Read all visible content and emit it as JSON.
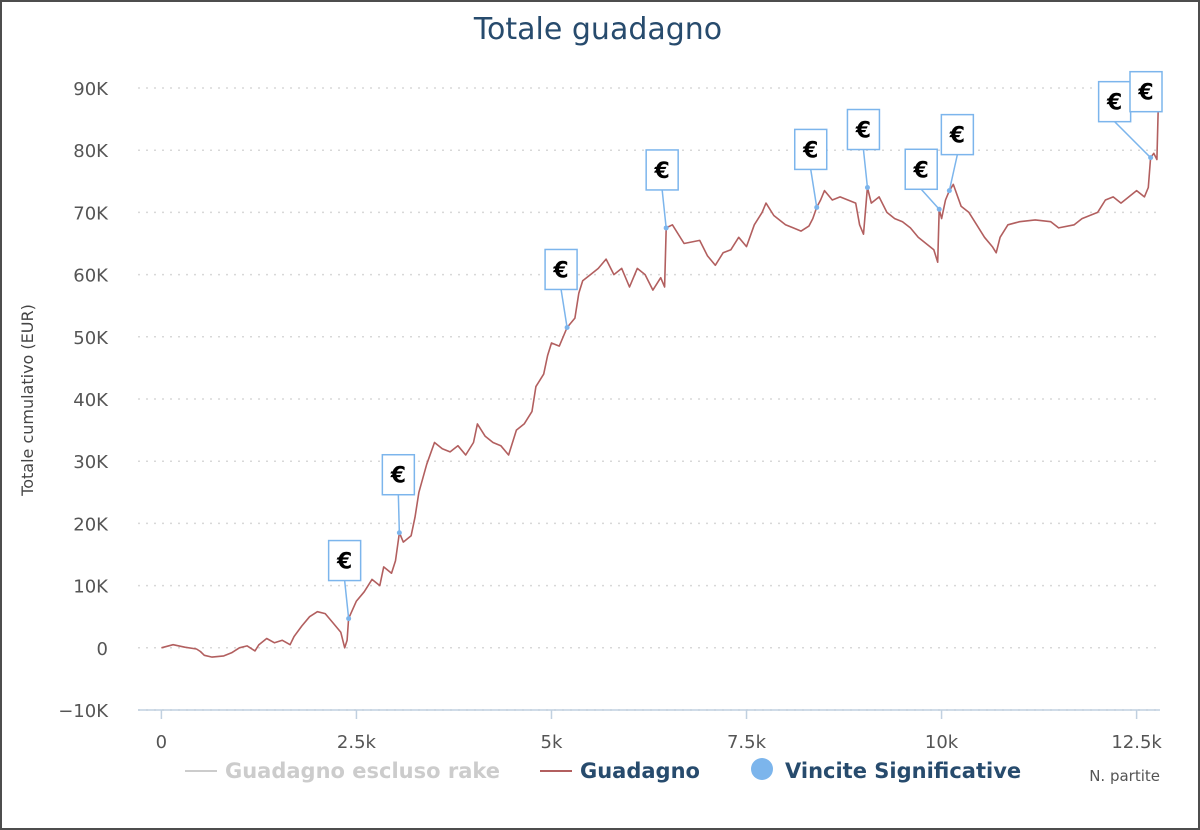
{
  "chart_data": {
    "type": "line",
    "title": "Totale guadagno",
    "xlabel": "N. partite",
    "ylabel": "Totale cumulativo (EUR)",
    "xlim": [
      -300,
      12800
    ],
    "ylim": [
      -10000,
      90000
    ],
    "x_ticks": [
      0,
      2500,
      5000,
      7500,
      10000,
      12500
    ],
    "x_tick_labels": [
      "0",
      "2.5k",
      "5k",
      "7.5k",
      "10k",
      "12.5k"
    ],
    "y_ticks": [
      -10000,
      0,
      10000,
      20000,
      30000,
      40000,
      50000,
      60000,
      70000,
      80000,
      90000
    ],
    "y_tick_labels": [
      "−10K",
      "0",
      "10K",
      "20K",
      "30K",
      "40K",
      "50K",
      "60K",
      "70K",
      "80K",
      "90K"
    ],
    "grid": "horizontal-dotted",
    "legend_position": "bottom",
    "series": [
      {
        "name": "Guadagno escluso rake",
        "color": "#cccccc",
        "hidden": true,
        "points": []
      },
      {
        "name": "Guadagno",
        "color": "#b25f5f",
        "points": [
          [
            0,
            0
          ],
          [
            150,
            500
          ],
          [
            300,
            100
          ],
          [
            450,
            -200
          ],
          [
            500,
            -600
          ],
          [
            550,
            -1200
          ],
          [
            650,
            -1500
          ],
          [
            800,
            -1300
          ],
          [
            900,
            -800
          ],
          [
            1000,
            0
          ],
          [
            1100,
            300
          ],
          [
            1200,
            -500
          ],
          [
            1250,
            500
          ],
          [
            1350,
            1500
          ],
          [
            1450,
            800
          ],
          [
            1550,
            1200
          ],
          [
            1650,
            500
          ],
          [
            1700,
            1800
          ],
          [
            1800,
            3500
          ],
          [
            1900,
            5000
          ],
          [
            2000,
            5800
          ],
          [
            2100,
            5500
          ],
          [
            2200,
            4000
          ],
          [
            2300,
            2500
          ],
          [
            2350,
            0
          ],
          [
            2380,
            1200
          ],
          [
            2400,
            4700
          ],
          [
            2500,
            7500
          ],
          [
            2600,
            9000
          ],
          [
            2700,
            11000
          ],
          [
            2800,
            10000
          ],
          [
            2850,
            13000
          ],
          [
            2950,
            12000
          ],
          [
            3000,
            14000
          ],
          [
            3050,
            18500
          ],
          [
            3100,
            17000
          ],
          [
            3200,
            18000
          ],
          [
            3250,
            21000
          ],
          [
            3300,
            25000
          ],
          [
            3400,
            29500
          ],
          [
            3500,
            33000
          ],
          [
            3600,
            32000
          ],
          [
            3700,
            31500
          ],
          [
            3800,
            32500
          ],
          [
            3900,
            31000
          ],
          [
            4000,
            33000
          ],
          [
            4050,
            36000
          ],
          [
            4150,
            34000
          ],
          [
            4250,
            33000
          ],
          [
            4350,
            32500
          ],
          [
            4450,
            31000
          ],
          [
            4550,
            35000
          ],
          [
            4650,
            36000
          ],
          [
            4750,
            38000
          ],
          [
            4800,
            42000
          ],
          [
            4900,
            44000
          ],
          [
            4950,
            47000
          ],
          [
            5000,
            49000
          ],
          [
            5100,
            48500
          ],
          [
            5200,
            51500
          ],
          [
            5300,
            53000
          ],
          [
            5350,
            57000
          ],
          [
            5400,
            59000
          ],
          [
            5500,
            60000
          ],
          [
            5600,
            61000
          ],
          [
            5700,
            62500
          ],
          [
            5800,
            60000
          ],
          [
            5900,
            61000
          ],
          [
            6000,
            58000
          ],
          [
            6100,
            61000
          ],
          [
            6200,
            60000
          ],
          [
            6300,
            57500
          ],
          [
            6400,
            59500
          ],
          [
            6450,
            58000
          ],
          [
            6470,
            67500
          ],
          [
            6550,
            68000
          ],
          [
            6700,
            65000
          ],
          [
            6900,
            65500
          ],
          [
            7000,
            63000
          ],
          [
            7100,
            61500
          ],
          [
            7200,
            63500
          ],
          [
            7300,
            64000
          ],
          [
            7400,
            66000
          ],
          [
            7500,
            64500
          ],
          [
            7600,
            68000
          ],
          [
            7700,
            70000
          ],
          [
            7750,
            71500
          ],
          [
            7850,
            69500
          ],
          [
            8000,
            68000
          ],
          [
            8100,
            67500
          ],
          [
            8200,
            67000
          ],
          [
            8300,
            67800
          ],
          [
            8350,
            69000
          ],
          [
            8400,
            70800
          ],
          [
            8450,
            72000
          ],
          [
            8500,
            73500
          ],
          [
            8600,
            72000
          ],
          [
            8700,
            72500
          ],
          [
            8800,
            72000
          ],
          [
            8900,
            71500
          ],
          [
            8950,
            68000
          ],
          [
            9000,
            66500
          ],
          [
            9050,
            74000
          ],
          [
            9100,
            71500
          ],
          [
            9200,
            72500
          ],
          [
            9300,
            70000
          ],
          [
            9400,
            69000
          ],
          [
            9500,
            68500
          ],
          [
            9600,
            67500
          ],
          [
            9700,
            66000
          ],
          [
            9800,
            65000
          ],
          [
            9900,
            64000
          ],
          [
            9950,
            62000
          ],
          [
            9970,
            70500
          ],
          [
            10000,
            69000
          ],
          [
            10050,
            72000
          ],
          [
            10100,
            73500
          ],
          [
            10150,
            74500
          ],
          [
            10250,
            71000
          ],
          [
            10350,
            70000
          ],
          [
            10450,
            68000
          ],
          [
            10550,
            66000
          ],
          [
            10650,
            64500
          ],
          [
            10700,
            63500
          ],
          [
            10750,
            66000
          ],
          [
            10850,
            68000
          ],
          [
            11000,
            68500
          ],
          [
            11200,
            68800
          ],
          [
            11400,
            68500
          ],
          [
            11500,
            67500
          ],
          [
            11700,
            68000
          ],
          [
            11800,
            69000
          ],
          [
            11900,
            69500
          ],
          [
            12000,
            70000
          ],
          [
            12100,
            72000
          ],
          [
            12200,
            72500
          ],
          [
            12300,
            71500
          ],
          [
            12400,
            72500
          ],
          [
            12500,
            73500
          ],
          [
            12600,
            72500
          ],
          [
            12650,
            74000
          ],
          [
            12680,
            78800
          ],
          [
            12720,
            79500
          ],
          [
            12760,
            78500
          ],
          [
            12780,
            87800
          ]
        ]
      },
      {
        "name": "Vincite Significative",
        "color": "#7cb5ec",
        "marker": "€",
        "points": [
          [
            2400,
            4700
          ],
          [
            3050,
            18500
          ],
          [
            5200,
            51500
          ],
          [
            6470,
            67500
          ],
          [
            8400,
            70800
          ],
          [
            9050,
            74000
          ],
          [
            9970,
            70500
          ],
          [
            10100,
            73500
          ],
          [
            12680,
            78800
          ],
          [
            12780,
            87800
          ]
        ]
      }
    ]
  }
}
